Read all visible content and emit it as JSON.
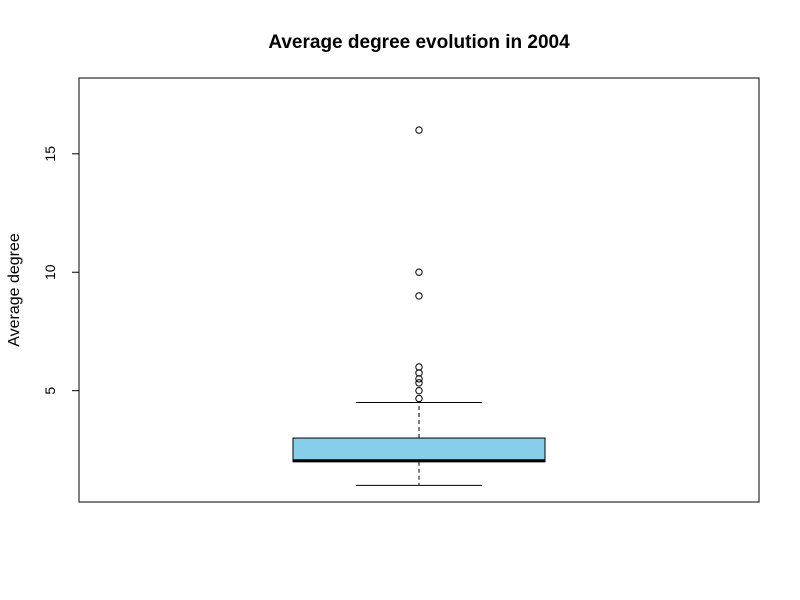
{
  "chart_data": {
    "type": "boxplot",
    "title": "Average degree evolution in 2004",
    "xlabel": "",
    "ylabel": "Average degree",
    "ylim": [
      0.3,
      18.2
    ],
    "yticks": [
      5,
      10,
      15
    ],
    "grid": false,
    "box_color": "#87CEEB",
    "stats": {
      "min": 1,
      "q1": 2,
      "median": 2,
      "q3": 3,
      "whisker_high": 4.5
    },
    "outliers": [
      4.67,
      5,
      5.33,
      5.5,
      5.75,
      6,
      9,
      10,
      16
    ]
  }
}
